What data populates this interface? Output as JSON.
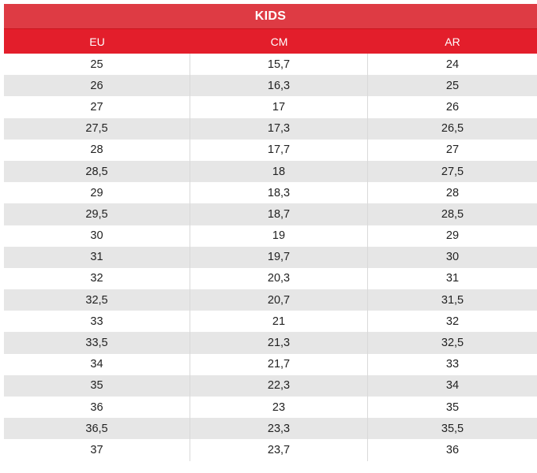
{
  "table": {
    "title": "KIDS",
    "headers": [
      "EU",
      "CM",
      "AR"
    ],
    "rows": [
      [
        "25",
        "15,7",
        "24"
      ],
      [
        "26",
        "16,3",
        "25"
      ],
      [
        "27",
        "17",
        "26"
      ],
      [
        "27,5",
        "17,3",
        "26,5"
      ],
      [
        "28",
        "17,7",
        "27"
      ],
      [
        "28,5",
        "18",
        "27,5"
      ],
      [
        "29",
        "18,3",
        "28"
      ],
      [
        "29,5",
        "18,7",
        "28,5"
      ],
      [
        "30",
        "19",
        "29"
      ],
      [
        "31",
        "19,7",
        "30"
      ],
      [
        "32",
        "20,3",
        "31"
      ],
      [
        "32,5",
        "20,7",
        "31,5"
      ],
      [
        "33",
        "21",
        "32"
      ],
      [
        "33,5",
        "21,3",
        "32,5"
      ],
      [
        "34",
        "21,7",
        "33"
      ],
      [
        "35",
        "22,3",
        "34"
      ],
      [
        "36",
        "23",
        "35"
      ],
      [
        "36,5",
        "23,3",
        "35,5"
      ],
      [
        "37",
        "23,7",
        "36"
      ]
    ],
    "colors": {
      "title_bg": "#de3b44",
      "header_bg": "#e31e2b",
      "shaded_row": "#e6e6e6"
    }
  }
}
